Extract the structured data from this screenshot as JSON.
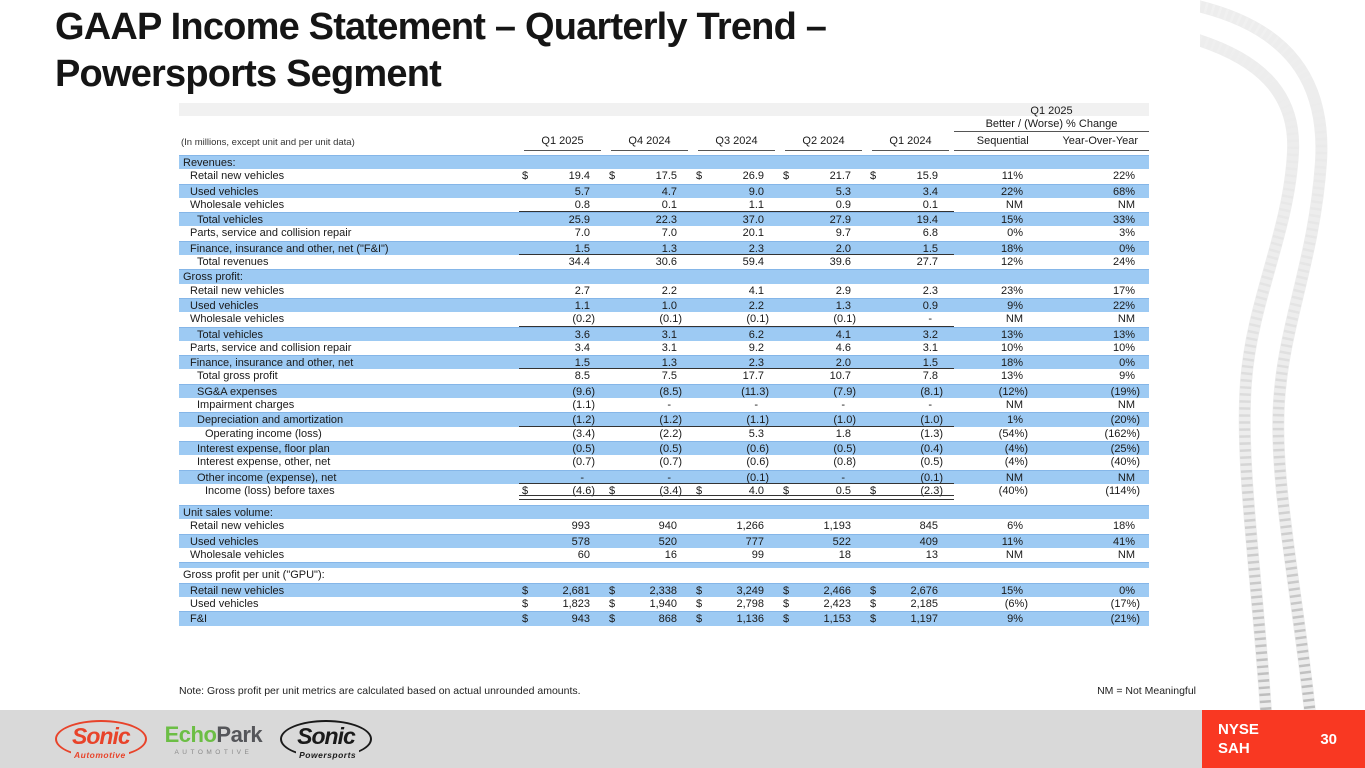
{
  "slide": {
    "title_line1": "GAAP Income Statement – Quarterly Trend –",
    "title_line2": "Powersports Segment",
    "note": "Note: Gross profit per unit metrics are calculated based on actual unrounded amounts.",
    "nm_note": "NM = Not Meaningful",
    "page_number": "30"
  },
  "colors": {
    "stripe_blue": "#9DCAF3",
    "accent_red": "#F93822",
    "footer_gray": "#D9D9D9",
    "logo_red": "#E8432A",
    "logo_green": "#6CBE45"
  },
  "table": {
    "units_note": "(In millions, except unit and per unit data)",
    "change_header_line1": "Q1 2025",
    "change_header_line2": "Better / (Worse) % Change",
    "columns": [
      "Q1 2025",
      "Q4 2024",
      "Q3 2024",
      "Q2 2024",
      "Q1 2024"
    ],
    "change_columns": [
      "Sequential",
      "Year-Over-Year"
    ],
    "rows": [
      {
        "type": "section",
        "label": "Revenues:",
        "shade": "b"
      },
      {
        "type": "data",
        "label": "Retail new vehicles",
        "indent": 1,
        "shade": "w",
        "dollar": true,
        "values": [
          "19.4",
          "17.5",
          "26.9",
          "21.7",
          "15.9"
        ],
        "seq": "11%",
        "yoy": "22%"
      },
      {
        "type": "data",
        "label": "Used vehicles",
        "indent": 1,
        "shade": "b",
        "values": [
          "5.7",
          "4.7",
          "9.0",
          "5.3",
          "3.4"
        ],
        "seq": "22%",
        "yoy": "68%"
      },
      {
        "type": "data",
        "label": "Wholesale vehicles",
        "indent": 1,
        "shade": "w",
        "values": [
          "0.8",
          "0.1",
          "1.1",
          "0.9",
          "0.1"
        ],
        "seq": "NM",
        "yoy": "NM",
        "ul": true
      },
      {
        "type": "data",
        "label": "Total vehicles",
        "indent": 2,
        "shade": "b",
        "values": [
          "25.9",
          "22.3",
          "37.0",
          "27.9",
          "19.4"
        ],
        "seq": "15%",
        "yoy": "33%"
      },
      {
        "type": "data",
        "label": "Parts, service and collision repair",
        "indent": 1,
        "shade": "w",
        "values": [
          "7.0",
          "7.0",
          "20.1",
          "9.7",
          "6.8"
        ],
        "seq": "0%",
        "yoy": "3%"
      },
      {
        "type": "data",
        "label": "Finance, insurance and other, net (\"F&I\")",
        "indent": 1,
        "shade": "b",
        "values": [
          "1.5",
          "1.3",
          "2.3",
          "2.0",
          "1.5"
        ],
        "seq": "18%",
        "yoy": "0%",
        "ul": true
      },
      {
        "type": "data",
        "label": "Total revenues",
        "indent": 2,
        "shade": "w",
        "values": [
          "34.4",
          "30.6",
          "59.4",
          "39.6",
          "27.7"
        ],
        "seq": "12%",
        "yoy": "24%"
      },
      {
        "type": "section",
        "label": "Gross profit:",
        "shade": "b"
      },
      {
        "type": "data",
        "label": "Retail new vehicles",
        "indent": 1,
        "shade": "w",
        "values": [
          "2.7",
          "2.2",
          "4.1",
          "2.9",
          "2.3"
        ],
        "seq": "23%",
        "yoy": "17%"
      },
      {
        "type": "data",
        "label": "Used vehicles",
        "indent": 1,
        "shade": "b",
        "values": [
          "1.1",
          "1.0",
          "2.2",
          "1.3",
          "0.9"
        ],
        "seq": "9%",
        "yoy": "22%"
      },
      {
        "type": "data",
        "label": "Wholesale vehicles",
        "indent": 1,
        "shade": "w",
        "values": [
          "(0.2)",
          "(0.1)",
          "(0.1)",
          "(0.1)",
          "-"
        ],
        "seq": "NM",
        "yoy": "NM",
        "ul": true
      },
      {
        "type": "data",
        "label": "Total vehicles",
        "indent": 2,
        "shade": "b",
        "values": [
          "3.6",
          "3.1",
          "6.2",
          "4.1",
          "3.2"
        ],
        "seq": "13%",
        "yoy": "13%"
      },
      {
        "type": "data",
        "label": "Parts, service and collision repair",
        "indent": 1,
        "shade": "w",
        "values": [
          "3.4",
          "3.1",
          "9.2",
          "4.6",
          "3.1"
        ],
        "seq": "10%",
        "yoy": "10%"
      },
      {
        "type": "data",
        "label": "Finance, insurance and other, net",
        "indent": 1,
        "shade": "b",
        "values": [
          "1.5",
          "1.3",
          "2.3",
          "2.0",
          "1.5"
        ],
        "seq": "18%",
        "yoy": "0%",
        "ul": true
      },
      {
        "type": "data",
        "label": "Total gross profit",
        "indent": 2,
        "shade": "w",
        "values": [
          "8.5",
          "7.5",
          "17.7",
          "10.7",
          "7.8"
        ],
        "seq": "13%",
        "yoy": "9%"
      },
      {
        "type": "data",
        "label": "SG&A expenses",
        "indent": 2,
        "shade": "b",
        "values": [
          "(9.6)",
          "(8.5)",
          "(11.3)",
          "(7.9)",
          "(8.1)"
        ],
        "seq": "(12%)",
        "yoy": "(19%)"
      },
      {
        "type": "data",
        "label": "Impairment charges",
        "indent": 2,
        "shade": "w",
        "values": [
          "(1.1)",
          "-",
          "-",
          "-",
          "-"
        ],
        "seq": "NM",
        "yoy": "NM"
      },
      {
        "type": "data",
        "label": "Depreciation and amortization",
        "indent": 2,
        "shade": "b",
        "values": [
          "(1.2)",
          "(1.2)",
          "(1.1)",
          "(1.0)",
          "(1.0)"
        ],
        "seq": "1%",
        "yoy": "(20%)",
        "ul": true
      },
      {
        "type": "data",
        "label": "Operating income (loss)",
        "indent": 3,
        "shade": "w",
        "values": [
          "(3.4)",
          "(2.2)",
          "5.3",
          "1.8",
          "(1.3)"
        ],
        "seq": "(54%)",
        "yoy": "(162%)"
      },
      {
        "type": "data",
        "label": "Interest expense, floor plan",
        "indent": 2,
        "shade": "b",
        "values": [
          "(0.5)",
          "(0.5)",
          "(0.6)",
          "(0.5)",
          "(0.4)"
        ],
        "seq": "(4%)",
        "yoy": "(25%)"
      },
      {
        "type": "data",
        "label": "Interest expense, other, net",
        "indent": 2,
        "shade": "w",
        "values": [
          "(0.7)",
          "(0.7)",
          "(0.6)",
          "(0.8)",
          "(0.5)"
        ],
        "seq": "(4%)",
        "yoy": "(40%)"
      },
      {
        "type": "data",
        "label": "Other income (expense), net",
        "indent": 2,
        "shade": "b",
        "values": [
          "-",
          "-",
          "(0.1)",
          "-",
          "(0.1)"
        ],
        "seq": "NM",
        "yoy": "NM",
        "ul": true
      },
      {
        "type": "data",
        "label": "Income (loss) before taxes",
        "indent": 3,
        "shade": "w",
        "dollar": true,
        "values": [
          "(4.6)",
          "(3.4)",
          "4.0",
          "0.5",
          "(2.3)"
        ],
        "seq": "(40%)",
        "yoy": "(114%)",
        "dul": true
      },
      {
        "type": "spacer",
        "shade": "w"
      },
      {
        "type": "section",
        "label": "Unit sales volume:",
        "shade": "b"
      },
      {
        "type": "data",
        "label": "Retail new vehicles",
        "indent": 1,
        "shade": "w",
        "values": [
          "993",
          "940",
          "1,266",
          "1,193",
          "845"
        ],
        "seq": "6%",
        "yoy": "18%"
      },
      {
        "type": "data",
        "label": "Used vehicles",
        "indent": 1,
        "shade": "b",
        "values": [
          "578",
          "520",
          "777",
          "522",
          "409"
        ],
        "seq": "11%",
        "yoy": "41%"
      },
      {
        "type": "data",
        "label": "Wholesale vehicles",
        "indent": 1,
        "shade": "w",
        "values": [
          "60",
          "16",
          "99",
          "18",
          "13"
        ],
        "seq": "NM",
        "yoy": "NM"
      },
      {
        "type": "spacer",
        "shade": "b"
      },
      {
        "type": "section",
        "label": "Gross profit per unit (\"GPU\"):",
        "shade": "w"
      },
      {
        "type": "data",
        "label": "Retail new vehicles",
        "indent": 1,
        "shade": "b",
        "dollar": true,
        "values": [
          "2,681",
          "2,338",
          "3,249",
          "2,466",
          "2,676"
        ],
        "seq": "15%",
        "yoy": "0%"
      },
      {
        "type": "data",
        "label": "Used vehicles",
        "indent": 1,
        "shade": "w",
        "dollar": true,
        "values": [
          "1,823",
          "1,940",
          "2,798",
          "2,423",
          "2,185"
        ],
        "seq": "(6%)",
        "yoy": "(17%)"
      },
      {
        "type": "data",
        "label": "F&I",
        "indent": 1,
        "shade": "b",
        "dollar": true,
        "values": [
          "943",
          "868",
          "1,136",
          "1,153",
          "1,197"
        ],
        "seq": "9%",
        "yoy": "(21%)"
      }
    ]
  },
  "footer": {
    "logos": {
      "sonic": {
        "word": "Sonic",
        "sub": "Automotive"
      },
      "echopark": {
        "word1": "Echo",
        "word2": "Park",
        "sub": "AUTOMOTIVE"
      },
      "powersports": {
        "word": "Sonic",
        "sub": "Powersports"
      }
    },
    "ticker_line1": "NYSE",
    "ticker_line2": "SAH"
  }
}
